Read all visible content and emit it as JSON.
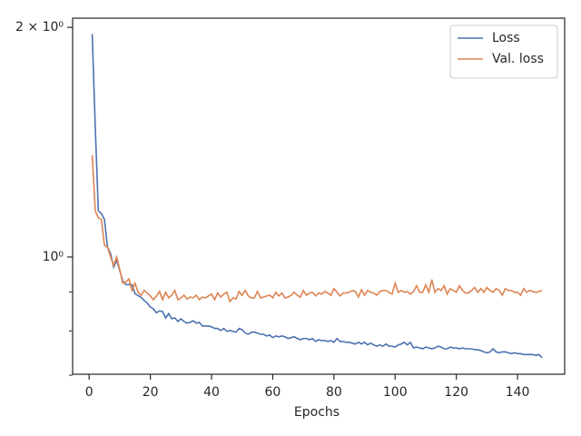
{
  "chart_data": {
    "type": "line",
    "xlabel": "Epochs",
    "log_y": true,
    "legend": "upper right",
    "x": [
      1,
      2,
      3,
      4,
      5,
      6,
      7,
      8,
      9,
      10,
      11,
      12,
      13,
      14,
      15,
      16,
      17,
      18,
      19,
      20,
      21,
      22,
      23,
      24,
      25,
      26,
      27,
      28,
      29,
      30,
      31,
      32,
      33,
      34,
      35,
      36,
      37,
      38,
      39,
      40,
      41,
      42,
      43,
      44,
      45,
      46,
      47,
      48,
      49,
      50,
      51,
      52,
      53,
      54,
      55,
      56,
      57,
      58,
      59,
      60,
      61,
      62,
      63,
      64,
      65,
      66,
      67,
      68,
      69,
      70,
      71,
      72,
      73,
      74,
      75,
      76,
      77,
      78,
      79,
      80,
      81,
      82,
      83,
      84,
      85,
      86,
      87,
      88,
      89,
      90,
      91,
      92,
      93,
      94,
      95,
      96,
      97,
      98,
      99,
      100,
      101,
      102,
      103,
      104,
      105,
      106,
      107,
      108,
      109,
      110,
      111,
      112,
      113,
      114,
      115,
      116,
      117,
      118,
      119,
      120,
      121,
      122,
      123,
      124,
      125,
      126,
      127,
      128,
      129,
      130,
      131,
      132,
      133,
      134,
      135,
      136,
      137,
      138,
      139,
      140,
      141,
      142,
      143,
      144,
      145,
      146,
      147,
      148
    ],
    "series": [
      {
        "name": "Loss",
        "color": "#4c72b0",
        "values": [
          1.96,
          1.48,
          1.15,
          1.14,
          1.12,
          1.03,
          1.01,
          0.97,
          0.99,
          0.96,
          0.93,
          0.92,
          0.92,
          0.92,
          0.895,
          0.89,
          0.885,
          0.877,
          0.87,
          0.86,
          0.855,
          0.845,
          0.85,
          0.848,
          0.832,
          0.843,
          0.83,
          0.832,
          0.823,
          0.83,
          0.823,
          0.819,
          0.821,
          0.825,
          0.819,
          0.821,
          0.812,
          0.812,
          0.812,
          0.81,
          0.806,
          0.806,
          0.801,
          0.806,
          0.799,
          0.801,
          0.799,
          0.797,
          0.806,
          0.803,
          0.795,
          0.792,
          0.797,
          0.797,
          0.795,
          0.792,
          0.792,
          0.788,
          0.79,
          0.784,
          0.788,
          0.786,
          0.788,
          0.786,
          0.782,
          0.784,
          0.786,
          0.782,
          0.779,
          0.782,
          0.782,
          0.779,
          0.782,
          0.775,
          0.779,
          0.777,
          0.777,
          0.775,
          0.777,
          0.773,
          0.782,
          0.775,
          0.775,
          0.773,
          0.773,
          0.771,
          0.769,
          0.773,
          0.769,
          0.773,
          0.767,
          0.771,
          0.767,
          0.764,
          0.767,
          0.764,
          0.769,
          0.764,
          0.764,
          0.762,
          0.767,
          0.769,
          0.773,
          0.767,
          0.773,
          0.76,
          0.762,
          0.76,
          0.758,
          0.762,
          0.76,
          0.758,
          0.76,
          0.764,
          0.762,
          0.758,
          0.758,
          0.762,
          0.76,
          0.76,
          0.758,
          0.76,
          0.758,
          0.758,
          0.758,
          0.756,
          0.756,
          0.754,
          0.751,
          0.749,
          0.751,
          0.758,
          0.751,
          0.749,
          0.751,
          0.751,
          0.749,
          0.747,
          0.749,
          0.747,
          0.747,
          0.745,
          0.745,
          0.745,
          0.745,
          0.743,
          0.745,
          0.738
        ]
      },
      {
        "name": "Val. loss",
        "color": "#dd8452",
        "values": [
          1.36,
          1.15,
          1.125,
          1.12,
          1.036,
          1.03,
          1.0,
          0.975,
          1.0,
          0.962,
          0.924,
          0.928,
          0.936,
          0.904,
          0.924,
          0.899,
          0.891,
          0.904,
          0.897,
          0.889,
          0.879,
          0.889,
          0.901,
          0.879,
          0.899,
          0.884,
          0.891,
          0.904,
          0.879,
          0.884,
          0.891,
          0.881,
          0.886,
          0.884,
          0.891,
          0.879,
          0.886,
          0.884,
          0.889,
          0.894,
          0.879,
          0.897,
          0.886,
          0.894,
          0.899,
          0.874,
          0.884,
          0.881,
          0.901,
          0.891,
          0.904,
          0.889,
          0.884,
          0.884,
          0.901,
          0.884,
          0.886,
          0.889,
          0.891,
          0.884,
          0.899,
          0.889,
          0.897,
          0.884,
          0.886,
          0.891,
          0.899,
          0.891,
          0.886,
          0.904,
          0.891,
          0.897,
          0.899,
          0.889,
          0.897,
          0.894,
          0.901,
          0.897,
          0.891,
          0.909,
          0.899,
          0.889,
          0.897,
          0.897,
          0.899,
          0.904,
          0.901,
          0.886,
          0.906,
          0.891,
          0.904,
          0.899,
          0.897,
          0.891,
          0.901,
          0.904,
          0.904,
          0.899,
          0.894,
          0.924,
          0.899,
          0.904,
          0.899,
          0.901,
          0.894,
          0.901,
          0.917,
          0.899,
          0.899,
          0.919,
          0.899,
          0.934,
          0.899,
          0.909,
          0.904,
          0.917,
          0.894,
          0.909,
          0.904,
          0.899,
          0.917,
          0.904,
          0.897,
          0.897,
          0.904,
          0.912,
          0.899,
          0.909,
          0.899,
          0.912,
          0.904,
          0.899,
          0.909,
          0.904,
          0.891,
          0.909,
          0.904,
          0.904,
          0.899,
          0.899,
          0.891,
          0.909,
          0.899,
          0.904,
          0.901,
          0.899,
          0.901,
          0.904
        ]
      }
    ],
    "xlim": [
      -5.4,
      155.4
    ],
    "xticks": [
      0,
      20,
      40,
      60,
      80,
      100,
      120,
      140
    ],
    "ylim": [
      0.702,
      2.056
    ],
    "yticks": [
      {
        "value": 1,
        "label": "10⁰"
      },
      {
        "value": 2,
        "label": "2 × 10⁰"
      }
    ],
    "yminorticks": [
      0.7,
      0.8,
      0.9
    ]
  }
}
